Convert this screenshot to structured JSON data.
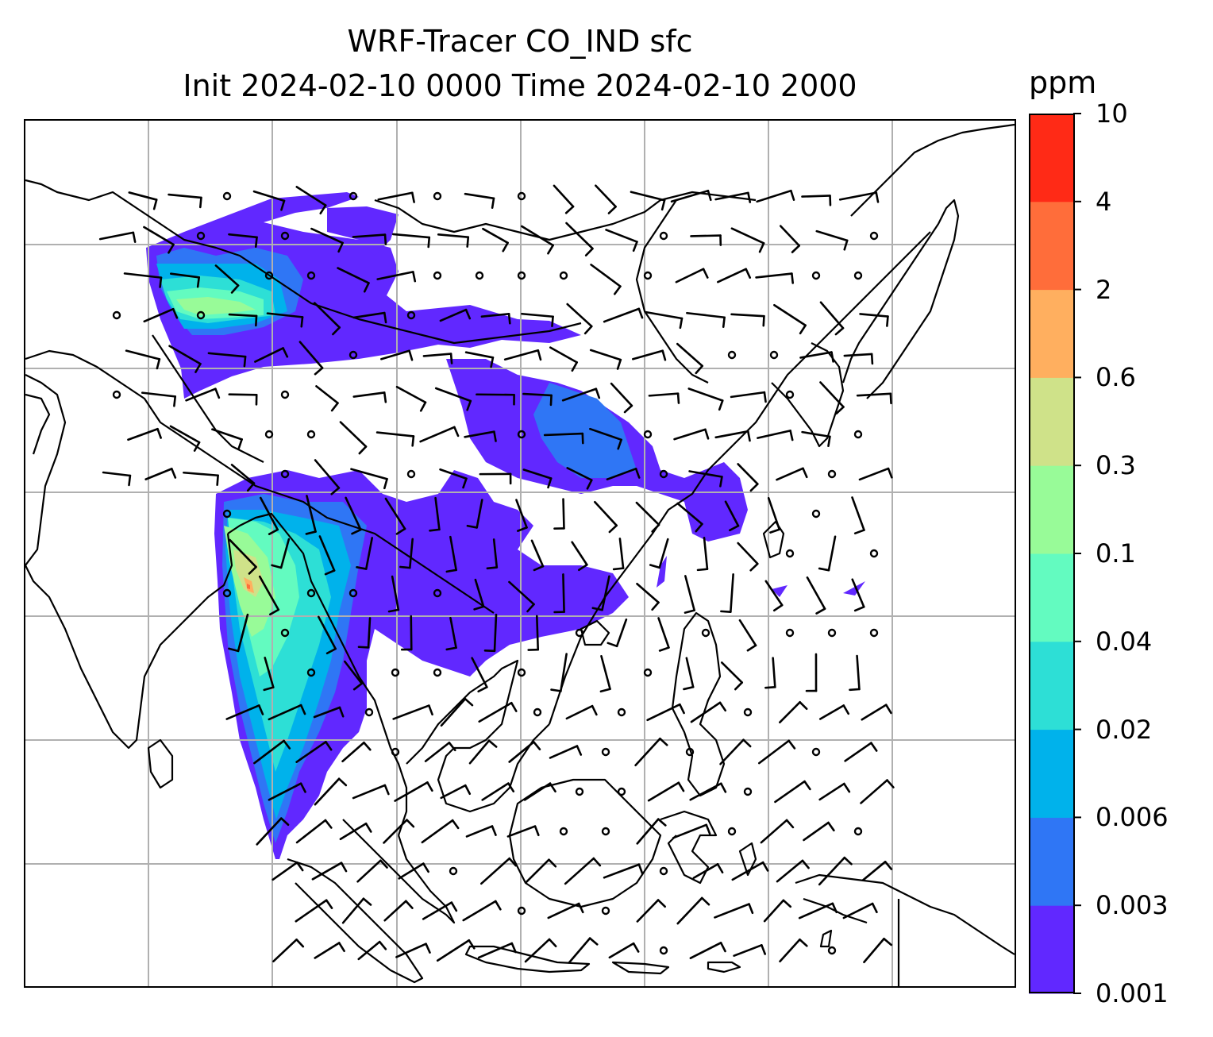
{
  "title": {
    "line1": "WRF-Tracer CO_IND sfc",
    "line2": "Init 2024-02-10 0000 Time 2024-02-10 2000"
  },
  "colorbar": {
    "unit": "ppm",
    "levels": [
      "0.001",
      "0.003",
      "0.006",
      "0.02",
      "0.04",
      "0.1",
      "0.3",
      "0.6",
      "2",
      "4",
      "10"
    ],
    "colors": [
      "#6128ff",
      "#2f76f5",
      "#00b2eb",
      "#2ddfd6",
      "#63fbc0",
      "#98fb98",
      "#cfe289",
      "#ffaf5f",
      "#ff6d3a",
      "#ff2a16"
    ]
  },
  "map": {
    "gridlines": true,
    "grid_color": "#b0b0b0",
    "coastline_color": "#000000",
    "wind_barbs": true,
    "field": "CO_IND tracer concentration at surface"
  }
}
